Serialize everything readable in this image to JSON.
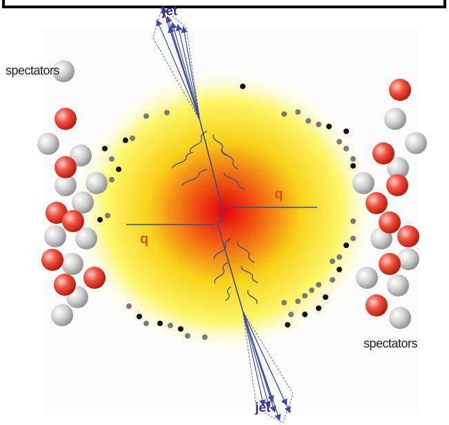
{
  "jets": [
    {
      "label": "jet"
    },
    {
      "label": "jet"
    }
  ],
  "quarks": [
    {
      "label": "q"
    },
    {
      "label": "q"
    }
  ],
  "spectators": [
    {
      "label": "spectators"
    },
    {
      "label": "spectators"
    }
  ]
}
